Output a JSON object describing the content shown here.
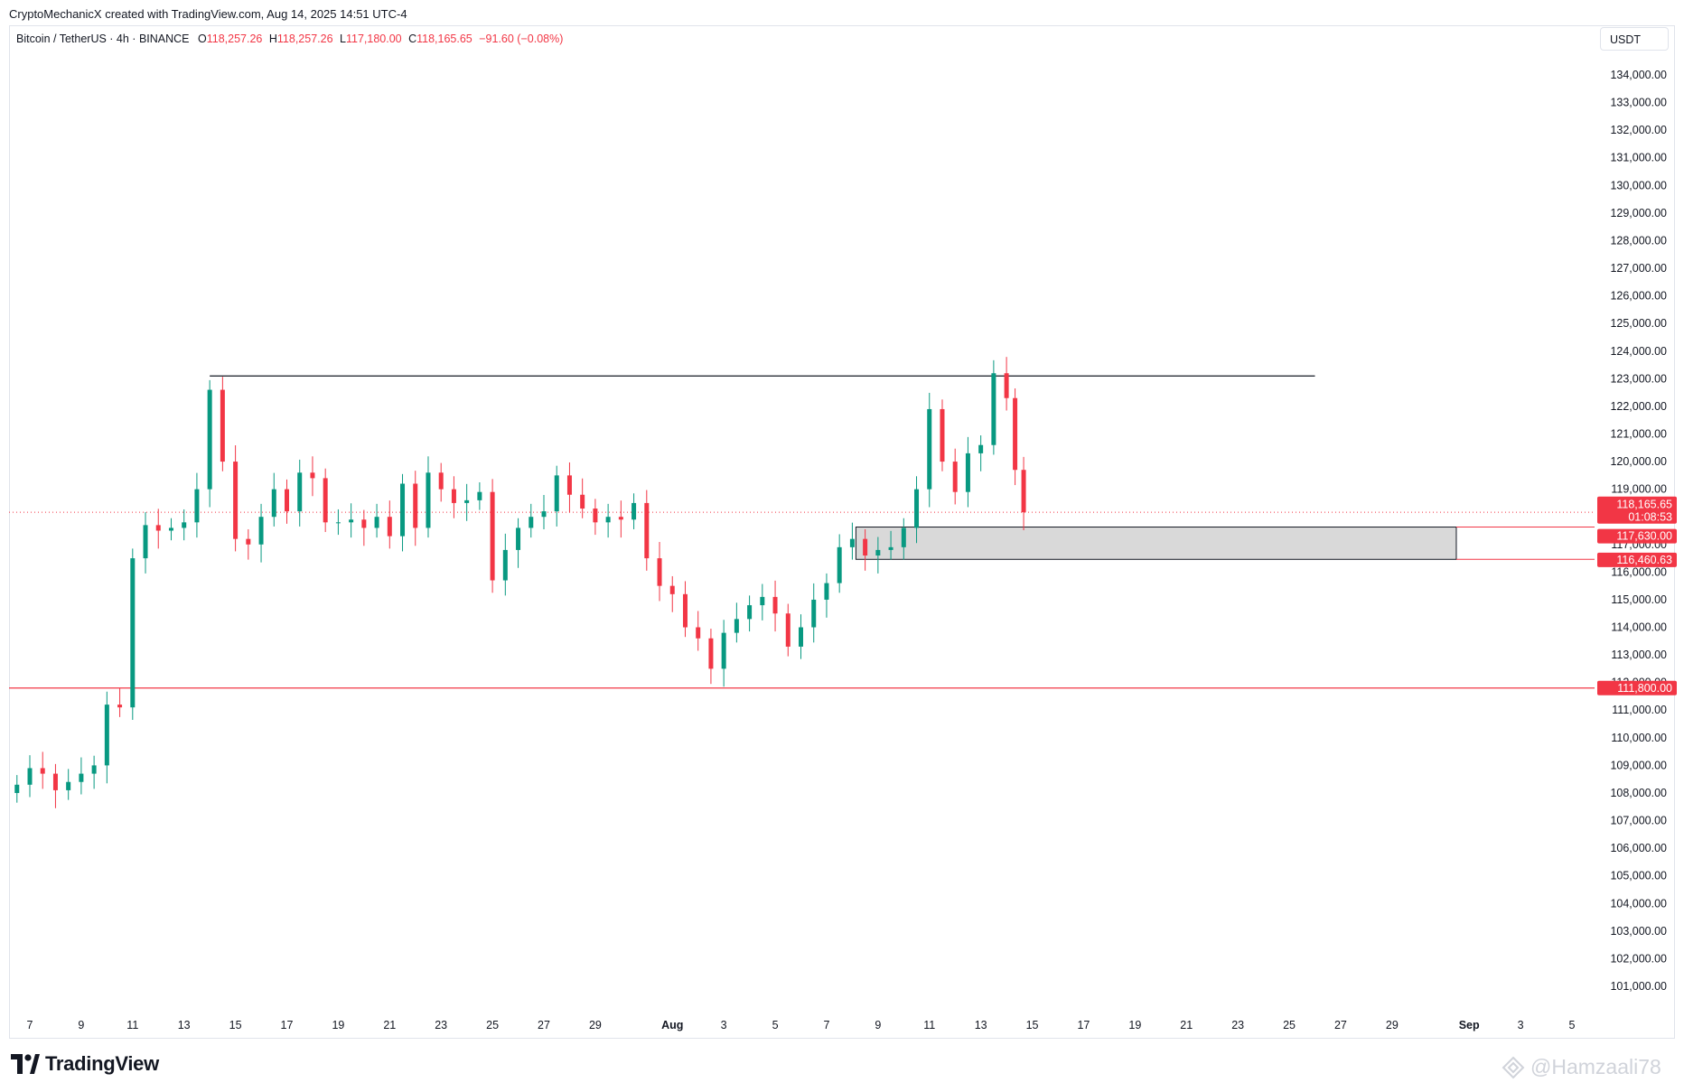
{
  "header": {
    "attribution": "CryptoMechanicX created with TradingView.com, Aug 14, 2025 14:51 UTC-4"
  },
  "legend": {
    "symbol": "Bitcoin / TetherUS · 4h · BINANCE",
    "o_label": "O",
    "o_value": "118,257.26",
    "h_label": "H",
    "h_value": "118,257.26",
    "l_label": "L",
    "l_value": "117,180.00",
    "c_label": "C",
    "c_value": "118,165.65",
    "change": "−91.60 (−0.08%)"
  },
  "currency_button": {
    "label": "USDT"
  },
  "brand": {
    "name": "TradingView",
    "logo_icon": "tradingview-logo-icon"
  },
  "watermark": {
    "text": "@Hamzaali78",
    "icon": "binance-square-icon"
  },
  "colors": {
    "up": "#089981",
    "down": "#f23645",
    "level_line": "#f23645",
    "resistance_line": "#131722",
    "zone_fill": "#d9d9d9"
  },
  "price_tags": {
    "current": "118,165.65",
    "countdown": "01:08:53",
    "zone_top": "117,630.00",
    "zone_bottom": "116,460.63",
    "support": "111,800.00"
  },
  "chart_data": {
    "type": "candlestick",
    "title": "Bitcoin / TetherUS · 4h · BINANCE",
    "y_axis": {
      "side": "right",
      "range": [
        100000,
        134600
      ],
      "ticks": [
        "101,000.00",
        "102,000.00",
        "103,000.00",
        "104,000.00",
        "105,000.00",
        "106,000.00",
        "107,000.00",
        "108,000.00",
        "109,000.00",
        "110,000.00",
        "111,000.00",
        "112,000.00",
        "113,000.00",
        "114,000.00",
        "115,000.00",
        "116,000.00",
        "117,000.00",
        "118,000.00",
        "119,000.00",
        "120,000.00",
        "121,000.00",
        "122,000.00",
        "123,000.00",
        "124,000.00",
        "125,000.00",
        "126,000.00",
        "127,000.00",
        "128,000.00",
        "129,000.00",
        "130,000.00",
        "131,000.00",
        "132,000.00",
        "133,000.00",
        "134,000.00"
      ],
      "tick_values": [
        101000,
        102000,
        103000,
        104000,
        105000,
        106000,
        107000,
        108000,
        109000,
        110000,
        111000,
        112000,
        113000,
        114000,
        115000,
        116000,
        117000,
        118000,
        119000,
        120000,
        121000,
        122000,
        123000,
        124000,
        125000,
        126000,
        127000,
        128000,
        129000,
        130000,
        131000,
        132000,
        133000,
        134000
      ]
    },
    "x_axis": {
      "range": [
        "2025-07-06T12:00",
        "2025-09-06T00:00"
      ],
      "ticks": [
        {
          "label": "7",
          "date": "2025-07-07"
        },
        {
          "label": "9",
          "date": "2025-07-09"
        },
        {
          "label": "11",
          "date": "2025-07-11"
        },
        {
          "label": "13",
          "date": "2025-07-13"
        },
        {
          "label": "15",
          "date": "2025-07-15"
        },
        {
          "label": "17",
          "date": "2025-07-17"
        },
        {
          "label": "19",
          "date": "2025-07-19"
        },
        {
          "label": "21",
          "date": "2025-07-21"
        },
        {
          "label": "23",
          "date": "2025-07-23"
        },
        {
          "label": "25",
          "date": "2025-07-25"
        },
        {
          "label": "27",
          "date": "2025-07-27"
        },
        {
          "label": "29",
          "date": "2025-07-29"
        },
        {
          "label": "Aug",
          "date": "2025-08-01",
          "bold": true
        },
        {
          "label": "3",
          "date": "2025-08-03"
        },
        {
          "label": "5",
          "date": "2025-08-05"
        },
        {
          "label": "7",
          "date": "2025-08-07"
        },
        {
          "label": "9",
          "date": "2025-08-09"
        },
        {
          "label": "11",
          "date": "2025-08-11"
        },
        {
          "label": "13",
          "date": "2025-08-13"
        },
        {
          "label": "15",
          "date": "2025-08-15"
        },
        {
          "label": "17",
          "date": "2025-08-17"
        },
        {
          "label": "19",
          "date": "2025-08-19"
        },
        {
          "label": "21",
          "date": "2025-08-21"
        },
        {
          "label": "23",
          "date": "2025-08-23"
        },
        {
          "label": "25",
          "date": "2025-08-25"
        },
        {
          "label": "27",
          "date": "2025-08-27"
        },
        {
          "label": "29",
          "date": "2025-08-29"
        },
        {
          "label": "Sep",
          "date": "2025-09-01",
          "bold": true
        },
        {
          "label": "3",
          "date": "2025-09-03"
        },
        {
          "label": "5",
          "date": "2025-09-05"
        }
      ]
    },
    "series_note": "approximate close prices read from the chart (4h bars)",
    "series": [
      {
        "date": "2025-07-06T12:00",
        "close": 108300
      },
      {
        "date": "2025-07-07T00:00",
        "close": 108900
      },
      {
        "date": "2025-07-07T12:00",
        "close": 108700
      },
      {
        "date": "2025-07-08T00:00",
        "close": 108100
      },
      {
        "date": "2025-07-08T12:00",
        "close": 108400
      },
      {
        "date": "2025-07-09T00:00",
        "close": 108700
      },
      {
        "date": "2025-07-09T12:00",
        "close": 109000
      },
      {
        "date": "2025-07-10T00:00",
        "close": 111200
      },
      {
        "date": "2025-07-10T12:00",
        "close": 111100
      },
      {
        "date": "2025-07-11T00:00",
        "close": 116500
      },
      {
        "date": "2025-07-11T12:00",
        "close": 117700
      },
      {
        "date": "2025-07-12T00:00",
        "close": 117500
      },
      {
        "date": "2025-07-12T12:00",
        "close": 117600
      },
      {
        "date": "2025-07-13T00:00",
        "close": 117800
      },
      {
        "date": "2025-07-13T12:00",
        "close": 119000
      },
      {
        "date": "2025-07-14T00:00",
        "close": 122600
      },
      {
        "date": "2025-07-14T12:00",
        "close": 120000
      },
      {
        "date": "2025-07-15T00:00",
        "close": 117200
      },
      {
        "date": "2025-07-15T12:00",
        "close": 117000
      },
      {
        "date": "2025-07-16T00:00",
        "close": 118000
      },
      {
        "date": "2025-07-16T12:00",
        "close": 119000
      },
      {
        "date": "2025-07-17T00:00",
        "close": 118200
      },
      {
        "date": "2025-07-17T12:00",
        "close": 119600
      },
      {
        "date": "2025-07-18T00:00",
        "close": 119400
      },
      {
        "date": "2025-07-18T12:00",
        "close": 117800
      },
      {
        "date": "2025-07-19T00:00",
        "close": 117800
      },
      {
        "date": "2025-07-19T12:00",
        "close": 117900
      },
      {
        "date": "2025-07-20T00:00",
        "close": 117600
      },
      {
        "date": "2025-07-20T12:00",
        "close": 118000
      },
      {
        "date": "2025-07-21T00:00",
        "close": 117300
      },
      {
        "date": "2025-07-21T12:00",
        "close": 119200
      },
      {
        "date": "2025-07-22T00:00",
        "close": 117600
      },
      {
        "date": "2025-07-22T12:00",
        "close": 119600
      },
      {
        "date": "2025-07-23T00:00",
        "close": 119000
      },
      {
        "date": "2025-07-23T12:00",
        "close": 118500
      },
      {
        "date": "2025-07-24T00:00",
        "close": 118600
      },
      {
        "date": "2025-07-24T12:00",
        "close": 118900
      },
      {
        "date": "2025-07-25T00:00",
        "close": 115700
      },
      {
        "date": "2025-07-25T12:00",
        "close": 116800
      },
      {
        "date": "2025-07-26T00:00",
        "close": 117600
      },
      {
        "date": "2025-07-26T12:00",
        "close": 118000
      },
      {
        "date": "2025-07-27T00:00",
        "close": 118200
      },
      {
        "date": "2025-07-27T12:00",
        "close": 119500
      },
      {
        "date": "2025-07-28T00:00",
        "close": 118800
      },
      {
        "date": "2025-07-28T12:00",
        "close": 118300
      },
      {
        "date": "2025-07-29T00:00",
        "close": 117800
      },
      {
        "date": "2025-07-29T12:00",
        "close": 118000
      },
      {
        "date": "2025-07-30T00:00",
        "close": 117900
      },
      {
        "date": "2025-07-30T12:00",
        "close": 118500
      },
      {
        "date": "2025-07-31T00:00",
        "close": 116500
      },
      {
        "date": "2025-07-31T12:00",
        "close": 115500
      },
      {
        "date": "2025-08-01T00:00",
        "close": 115200
      },
      {
        "date": "2025-08-01T12:00",
        "close": 114000
      },
      {
        "date": "2025-08-02T00:00",
        "close": 113600
      },
      {
        "date": "2025-08-02T12:00",
        "close": 112500
      },
      {
        "date": "2025-08-03T00:00",
        "close": 113800
      },
      {
        "date": "2025-08-03T12:00",
        "close": 114300
      },
      {
        "date": "2025-08-04T00:00",
        "close": 114800
      },
      {
        "date": "2025-08-04T12:00",
        "close": 115100
      },
      {
        "date": "2025-08-05T00:00",
        "close": 114500
      },
      {
        "date": "2025-08-05T12:00",
        "close": 113300
      },
      {
        "date": "2025-08-06T00:00",
        "close": 114000
      },
      {
        "date": "2025-08-06T12:00",
        "close": 115000
      },
      {
        "date": "2025-08-07T00:00",
        "close": 115600
      },
      {
        "date": "2025-08-07T12:00",
        "close": 116900
      },
      {
        "date": "2025-08-08T00:00",
        "close": 117200
      },
      {
        "date": "2025-08-08T12:00",
        "close": 116600
      },
      {
        "date": "2025-08-09T00:00",
        "close": 116800
      },
      {
        "date": "2025-08-09T12:00",
        "close": 116900
      },
      {
        "date": "2025-08-10T00:00",
        "close": 117600
      },
      {
        "date": "2025-08-10T12:00",
        "close": 119000
      },
      {
        "date": "2025-08-11T00:00",
        "close": 121900
      },
      {
        "date": "2025-08-11T12:00",
        "close": 120000
      },
      {
        "date": "2025-08-12T00:00",
        "close": 118900
      },
      {
        "date": "2025-08-12T12:00",
        "close": 120300
      },
      {
        "date": "2025-08-13T00:00",
        "close": 120600
      },
      {
        "date": "2025-08-13T12:00",
        "close": 123200
      },
      {
        "date": "2025-08-14T00:00",
        "close": 122300
      },
      {
        "date": "2025-08-14T08:00",
        "close": 119700
      },
      {
        "date": "2025-08-14T16:00",
        "close": 118165.65
      }
    ],
    "annotations": [
      {
        "type": "horizontal_segment",
        "label": "resistance",
        "price": 123100,
        "from": "2025-07-14T00:00",
        "to": "2025-08-26T00:00"
      },
      {
        "type": "horizontal_line",
        "label": "support",
        "price": 111800
      },
      {
        "type": "rectangle_zone",
        "top": 117630.0,
        "bottom": 116460.63,
        "from": "2025-08-08T00:00",
        "to": "2025-08-31T12:00"
      },
      {
        "type": "current_price_line",
        "price": 118165.65
      }
    ]
  }
}
